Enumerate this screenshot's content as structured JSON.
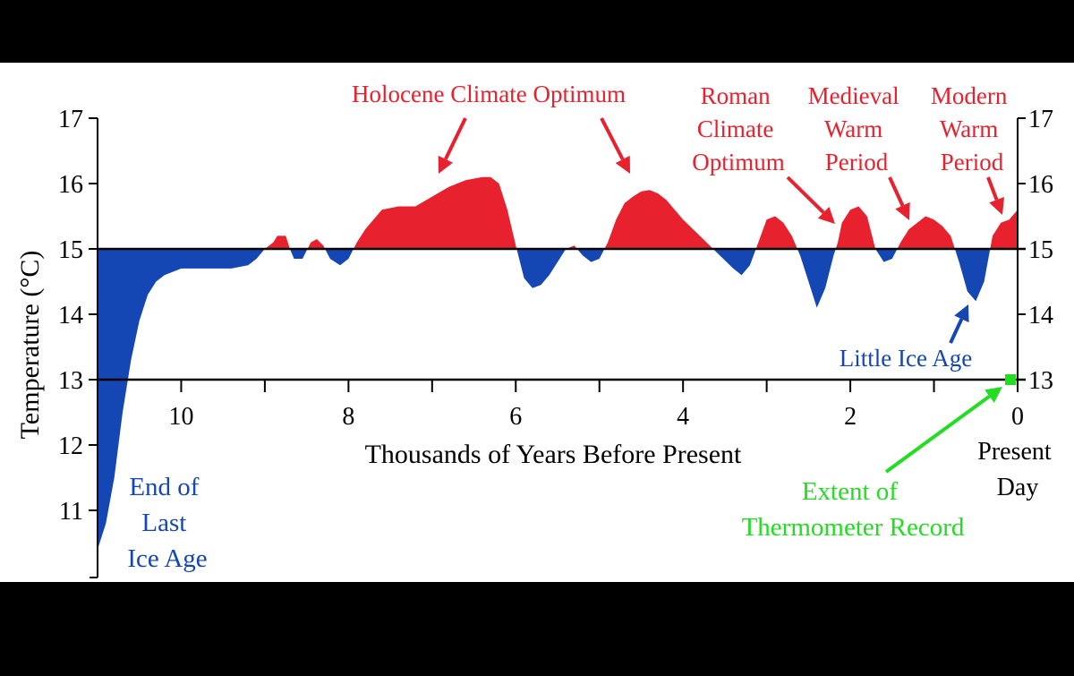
{
  "colors": {
    "frame": "#000000",
    "panel": "#ffffff",
    "warm": "#e8212e",
    "cool": "#1447b4",
    "green": "#22dd22",
    "axis": "#000000"
  },
  "chart_data": {
    "type": "area",
    "title": "",
    "xlabel": "Thousands of Years Before Present",
    "ylabel": "Temperature (°C)",
    "xlim": [
      11,
      0
    ],
    "ylim": [
      10,
      17
    ],
    "baseline": 15,
    "xticks": [
      10,
      8,
      6,
      4,
      2,
      0
    ],
    "yticks_left": [
      11,
      12,
      13,
      14,
      15,
      16,
      17
    ],
    "yticks_right": [
      13,
      14,
      15,
      16,
      17
    ],
    "xaxis_at_y": 13,
    "series": [
      {
        "x": [
          11.0,
          10.9,
          10.8,
          10.7,
          10.6,
          10.5,
          10.4,
          10.3,
          10.2,
          10.0,
          9.8,
          9.6,
          9.4,
          9.2,
          9.1,
          9.0,
          8.9,
          8.85,
          8.75,
          8.7,
          8.65,
          8.55,
          8.45,
          8.38,
          8.3,
          8.22,
          8.1,
          8.0,
          7.9,
          7.8,
          7.6,
          7.4,
          7.2,
          7.0,
          6.8,
          6.6,
          6.4,
          6.3,
          6.2,
          6.1,
          6.0,
          5.9,
          5.8,
          5.7,
          5.6,
          5.5,
          5.4,
          5.3,
          5.2,
          5.1,
          5.0,
          4.9,
          4.8,
          4.7,
          4.6,
          4.5,
          4.4,
          4.3,
          4.2,
          4.1,
          4.0,
          3.8,
          3.6,
          3.4,
          3.3,
          3.2,
          3.1,
          3.0,
          2.9,
          2.8,
          2.7,
          2.6,
          2.5,
          2.4,
          2.3,
          2.2,
          2.15,
          2.1,
          2.0,
          1.9,
          1.8,
          1.7,
          1.6,
          1.5,
          1.4,
          1.3,
          1.1,
          1.0,
          0.9,
          0.8,
          0.7,
          0.6,
          0.5,
          0.4,
          0.3,
          0.2,
          0.1,
          0.0
        ],
        "y": [
          10.4,
          10.8,
          11.5,
          12.5,
          13.3,
          13.9,
          14.3,
          14.5,
          14.6,
          14.7,
          14.7,
          14.7,
          14.7,
          14.75,
          14.85,
          15.0,
          15.1,
          15.2,
          15.2,
          15.0,
          14.85,
          14.85,
          15.1,
          15.15,
          15.05,
          14.85,
          14.75,
          14.85,
          15.1,
          15.3,
          15.6,
          15.65,
          15.65,
          15.8,
          15.95,
          16.05,
          16.1,
          16.1,
          16.0,
          15.6,
          15.05,
          14.55,
          14.4,
          14.45,
          14.6,
          14.8,
          15.0,
          15.05,
          14.9,
          14.8,
          14.85,
          15.1,
          15.45,
          15.7,
          15.8,
          15.88,
          15.9,
          15.85,
          15.75,
          15.6,
          15.45,
          15.2,
          14.95,
          14.7,
          14.6,
          14.75,
          15.1,
          15.45,
          15.5,
          15.4,
          15.2,
          14.9,
          14.5,
          14.1,
          14.4,
          14.9,
          15.1,
          15.4,
          15.6,
          15.65,
          15.5,
          15.0,
          14.8,
          14.85,
          15.1,
          15.3,
          15.5,
          15.45,
          15.35,
          15.2,
          14.8,
          14.35,
          14.2,
          14.5,
          15.2,
          15.4,
          15.45,
          15.6
        ]
      }
    ],
    "annotations": {
      "holocene": "Holocene Climate Optimum",
      "roman": [
        "Roman",
        "Climate",
        "Optimum"
      ],
      "medieval": [
        "Medieval",
        "Warm",
        "Period"
      ],
      "modern": [
        "Modern",
        "Warm",
        "Period"
      ],
      "little_ice_age": "Little Ice Age",
      "end_ice_age": [
        "End of",
        "Last",
        "Ice Age"
      ],
      "present_day": [
        "Present",
        "Day"
      ],
      "thermometer": [
        "Extent of",
        "Thermometer Record"
      ]
    }
  }
}
